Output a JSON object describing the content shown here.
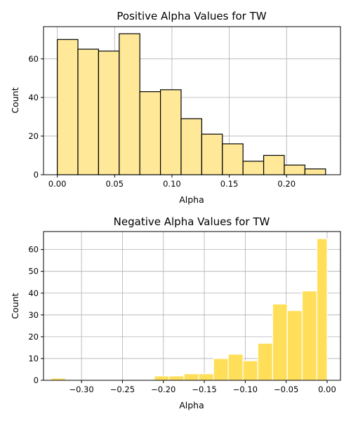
{
  "chart_data": [
    {
      "type": "bar",
      "title": "Positive Alpha Values for TW",
      "xlabel": "Alpha",
      "ylabel": "Count",
      "bar_color": "#ffe999",
      "edge_color": "#000000",
      "grid": true,
      "xlim": [
        -0.012,
        0.247
      ],
      "ylim": [
        0,
        76.65
      ],
      "xticks": [
        0.0,
        0.05,
        0.1,
        0.15,
        0.2
      ],
      "xtick_labels": [
        "0.00",
        "0.05",
        "0.10",
        "0.15",
        "0.20"
      ],
      "yticks": [
        0,
        20,
        40,
        60
      ],
      "ytick_labels": [
        "0",
        "20",
        "40",
        "60"
      ],
      "bins": [
        {
          "x0": 0.0,
          "x1": 0.018,
          "count": 70
        },
        {
          "x0": 0.018,
          "x1": 0.036,
          "count": 65
        },
        {
          "x0": 0.036,
          "x1": 0.054,
          "count": 64
        },
        {
          "x0": 0.054,
          "x1": 0.072,
          "count": 73
        },
        {
          "x0": 0.072,
          "x1": 0.09,
          "count": 43
        },
        {
          "x0": 0.09,
          "x1": 0.108,
          "count": 44
        },
        {
          "x0": 0.108,
          "x1": 0.126,
          "count": 29
        },
        {
          "x0": 0.126,
          "x1": 0.144,
          "count": 21
        },
        {
          "x0": 0.144,
          "x1": 0.162,
          "count": 16
        },
        {
          "x0": 0.162,
          "x1": 0.18,
          "count": 7
        },
        {
          "x0": 0.18,
          "x1": 0.198,
          "count": 10
        },
        {
          "x0": 0.198,
          "x1": 0.216,
          "count": 5
        },
        {
          "x0": 0.216,
          "x1": 0.234,
          "count": 3
        }
      ]
    },
    {
      "type": "bar",
      "title": "Negative Alpha Values for TW",
      "xlabel": "Alpha",
      "ylabel": "Count",
      "bar_color": "#ffdf5a",
      "edge_color": "#ffffff",
      "grid": true,
      "xlim": [
        -0.3464,
        0.0163
      ],
      "ylim": [
        0,
        68.25
      ],
      "xticks": [
        -0.3,
        -0.25,
        -0.2,
        -0.15,
        -0.1,
        -0.05,
        0.0
      ],
      "xtick_labels": [
        "−0.30",
        "−0.25",
        "−0.20",
        "−0.15",
        "−0.10",
        "−0.05",
        "0.00"
      ],
      "yticks": [
        0,
        10,
        20,
        30,
        40,
        50,
        60
      ],
      "ytick_labels": [
        "0",
        "10",
        "20",
        "30",
        "40",
        "50",
        "60"
      ],
      "bins": [
        {
          "x0": -0.3374,
          "x1": -0.3193,
          "count": 1
        },
        {
          "x0": -0.3193,
          "x1": -0.3013,
          "count": 0
        },
        {
          "x0": -0.3013,
          "x1": -0.2832,
          "count": 0
        },
        {
          "x0": -0.2832,
          "x1": -0.2652,
          "count": 0
        },
        {
          "x0": -0.2652,
          "x1": -0.2471,
          "count": 0
        },
        {
          "x0": -0.2471,
          "x1": -0.2291,
          "count": 0
        },
        {
          "x0": -0.2291,
          "x1": -0.211,
          "count": 0
        },
        {
          "x0": -0.211,
          "x1": -0.193,
          "count": 2
        },
        {
          "x0": -0.193,
          "x1": -0.1749,
          "count": 2
        },
        {
          "x0": -0.1749,
          "x1": -0.1569,
          "count": 3
        },
        {
          "x0": -0.1569,
          "x1": -0.1388,
          "count": 3
        },
        {
          "x0": -0.1388,
          "x1": -0.1208,
          "count": 10
        },
        {
          "x0": -0.1208,
          "x1": -0.1027,
          "count": 12
        },
        {
          "x0": -0.1027,
          "x1": -0.0847,
          "count": 9
        },
        {
          "x0": -0.0847,
          "x1": -0.0666,
          "count": 17
        },
        {
          "x0": -0.0666,
          "x1": -0.0486,
          "count": 35
        },
        {
          "x0": -0.0486,
          "x1": -0.0305,
          "count": 32
        },
        {
          "x0": -0.0305,
          "x1": -0.0125,
          "count": 41
        },
        {
          "x0": -0.0125,
          "x1": 0.0,
          "count": 65
        }
      ]
    }
  ]
}
